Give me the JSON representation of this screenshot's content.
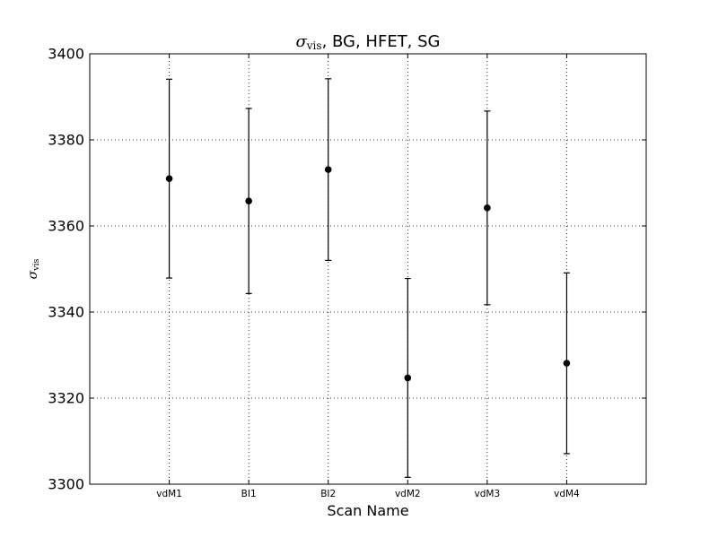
{
  "chart_data": {
    "type": "scatter",
    "title": {
      "symbol": "σ",
      "subscript": "vis",
      "rest": ", BG, HFET, SG"
    },
    "xlabel": "Scan Name",
    "ylabel": {
      "symbol": "σ",
      "subscript": "vis"
    },
    "categories": [
      "vdM1",
      "BI1",
      "BI2",
      "vdM2",
      "vdM3",
      "vdM4"
    ],
    "values": [
      3371.0,
      3365.8,
      3373.1,
      3324.7,
      3364.2,
      3328.1
    ],
    "errors": [
      23.1,
      21.5,
      21.1,
      23.1,
      22.5,
      21.0
    ],
    "ylim": [
      3300,
      3400
    ],
    "yticks": [
      3300,
      3320,
      3340,
      3360,
      3380,
      3400
    ],
    "grid": true,
    "marker_color": "#000000"
  }
}
